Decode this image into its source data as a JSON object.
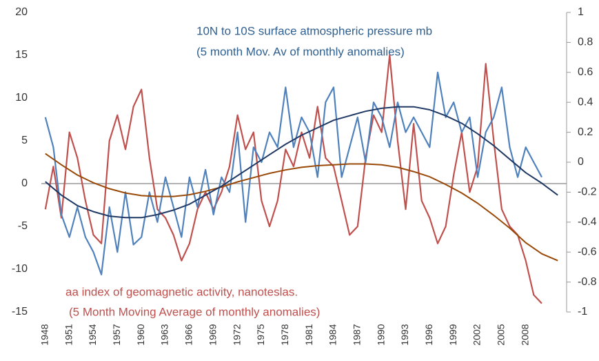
{
  "chart_data": {
    "type": "line",
    "annotations": [
      {
        "text": "10N to 10S surface atmospheric pressure mb",
        "color": "#2f5f8f"
      },
      {
        "text": "(5 month Mov. Av of monthly anomalies)",
        "color": "#2f5f8f"
      },
      {
        "text": "aa index of geomagnetic activity, nanoteslas.",
        "color": "#c0504d"
      },
      {
        "text": "(5 Month Moving Average of monthly anomalies)",
        "color": "#c0504d"
      }
    ],
    "x": [
      1948,
      1949,
      1950,
      1951,
      1952,
      1953,
      1954,
      1955,
      1956,
      1957,
      1958,
      1959,
      1960,
      1961,
      1962,
      1963,
      1964,
      1965,
      1966,
      1967,
      1968,
      1969,
      1970,
      1971,
      1972,
      1973,
      1974,
      1975,
      1976,
      1977,
      1978,
      1979,
      1980,
      1981,
      1982,
      1983,
      1984,
      1985,
      1986,
      1987,
      1988,
      1989,
      1990,
      1991,
      1992,
      1993,
      1994,
      1995,
      1996,
      1997,
      1998,
      1999,
      2000,
      2001,
      2002,
      2003,
      2004,
      2005,
      2006,
      2007,
      2008,
      2009,
      2010,
      2011,
      2012
    ],
    "xlim": [
      1947.5,
      2012.5
    ],
    "xticks": [
      1948,
      1951,
      1954,
      1957,
      1960,
      1963,
      1966,
      1969,
      1972,
      1975,
      1978,
      1981,
      1984,
      1987,
      1990,
      1993,
      1996,
      1999,
      2002,
      2005,
      2008
    ],
    "ylim": [
      -15,
      20
    ],
    "yticks": [
      -15,
      -10,
      -5,
      0,
      5,
      10,
      15,
      20
    ],
    "y2lim": [
      -1,
      1
    ],
    "y2ticks": [
      -1,
      -0.8,
      -0.6,
      -0.4,
      -0.2,
      0,
      0.2,
      0.4,
      0.6,
      0.8,
      1
    ],
    "series": [
      {
        "color": "#c0504d",
        "values": [
          -3,
          2,
          -4,
          6,
          3,
          -2,
          -6,
          -7,
          5,
          8,
          4,
          9,
          11,
          3,
          -3,
          -4,
          -6,
          -9,
          -7,
          -3,
          -1,
          -3,
          -1,
          2,
          8,
          4,
          6,
          -2,
          -5,
          -2,
          4,
          2,
          6,
          3,
          9,
          3,
          2,
          -2,
          -6,
          -5,
          3,
          8,
          6,
          15,
          5,
          -3,
          7,
          -2,
          -4,
          -7,
          -5,
          1,
          6,
          -1,
          2,
          14,
          5,
          -3,
          -5,
          -6,
          -9,
          -13,
          -14,
          null,
          null
        ]
      },
      {
        "color": "#4f81bd",
        "axis": "y2",
        "values": [
          0.3,
          0.1,
          -0.35,
          -0.5,
          -0.3,
          -0.5,
          -0.6,
          -0.75,
          -0.3,
          -0.6,
          -0.2,
          -0.55,
          -0.5,
          -0.2,
          -0.4,
          -0.1,
          -0.3,
          -0.5,
          -0.1,
          -0.3,
          -0.05,
          -0.35,
          -0.1,
          -0.2,
          0.2,
          -0.4,
          0.1,
          0.0,
          0.2,
          0.1,
          0.5,
          0.1,
          0.3,
          0.2,
          -0.1,
          0.4,
          0.5,
          -0.1,
          0.1,
          0.3,
          0.0,
          0.4,
          0.3,
          0.1,
          0.4,
          0.2,
          0.3,
          0.2,
          0.1,
          0.6,
          0.3,
          0.4,
          0.2,
          0.3,
          -0.1,
          0.2,
          0.3,
          0.5,
          0.1,
          -0.1,
          0.1,
          0.0,
          -0.1,
          null,
          null
        ]
      },
      {
        "color": "#984807",
        "x": [
          1948,
          1950,
          1952,
          1954,
          1956,
          1958,
          1960,
          1962,
          1964,
          1966,
          1968,
          1970,
          1972,
          1974,
          1976,
          1978,
          1980,
          1982,
          1984,
          1986,
          1988,
          1990,
          1992,
          1994,
          1996,
          1998,
          2000,
          2002,
          2004,
          2006,
          2008,
          2010,
          2012
        ],
        "values": [
          3.5,
          2.2,
          1.0,
          0.1,
          -0.6,
          -1.1,
          -1.4,
          -1.5,
          -1.5,
          -1.3,
          -0.9,
          -0.4,
          0.2,
          0.7,
          1.2,
          1.6,
          1.9,
          2.1,
          2.2,
          2.3,
          2.3,
          2.2,
          1.9,
          1.4,
          0.8,
          -0.1,
          -1.1,
          -2.3,
          -3.7,
          -5.2,
          -6.9,
          -8.2,
          -9.0
        ]
      },
      {
        "color": "#1f3864",
        "axis": "y2",
        "x": [
          1948,
          1950,
          1952,
          1954,
          1956,
          1958,
          1960,
          1962,
          1964,
          1966,
          1968,
          1970,
          1972,
          1974,
          1976,
          1978,
          1980,
          1982,
          1984,
          1986,
          1988,
          1990,
          1992,
          1994,
          1996,
          1998,
          2000,
          2002,
          2004,
          2006,
          2008,
          2010,
          2012
        ],
        "values": [
          -0.13,
          -0.22,
          -0.29,
          -0.33,
          -0.36,
          -0.37,
          -0.37,
          -0.35,
          -0.32,
          -0.28,
          -0.22,
          -0.16,
          -0.09,
          -0.02,
          0.05,
          0.12,
          0.18,
          0.23,
          0.28,
          0.31,
          0.34,
          0.36,
          0.37,
          0.37,
          0.35,
          0.31,
          0.26,
          0.19,
          0.11,
          0.02,
          -0.07,
          -0.14,
          -0.22
        ]
      }
    ]
  }
}
